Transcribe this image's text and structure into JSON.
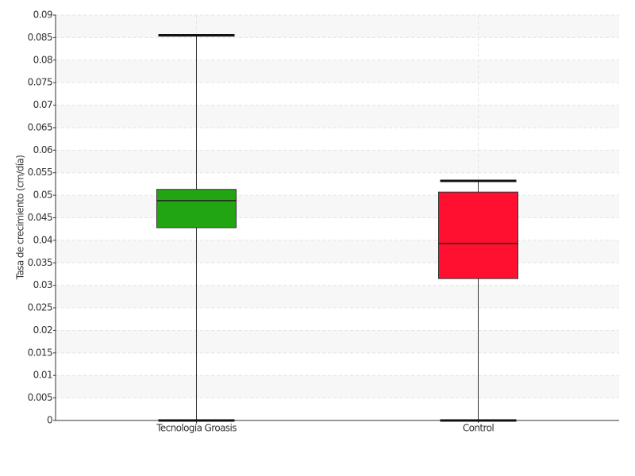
{
  "chart_data": {
    "type": "box",
    "y_label": "Tasa de crecimiento (cm/día)",
    "categories": [
      "Tecnología Groasis",
      "Control"
    ],
    "colors": [
      "#22a512",
      "#ff1030"
    ],
    "min": [
      0,
      0
    ],
    "q1": [
      0.0428,
      0.0315
    ],
    "median": [
      0.0488,
      0.0393
    ],
    "q3": [
      0.0513,
      0.0507
    ],
    "max": [
      0.0855,
      0.0532
    ],
    "ylim": [
      0,
      0.09
    ],
    "yticks": [
      0,
      0.005,
      0.01,
      0.015,
      0.02,
      0.025,
      0.03,
      0.035,
      0.04,
      0.045,
      0.05,
      0.055,
      0.06,
      0.065,
      0.07,
      0.075,
      0.08,
      0.085,
      0.09
    ],
    "grid": true
  }
}
